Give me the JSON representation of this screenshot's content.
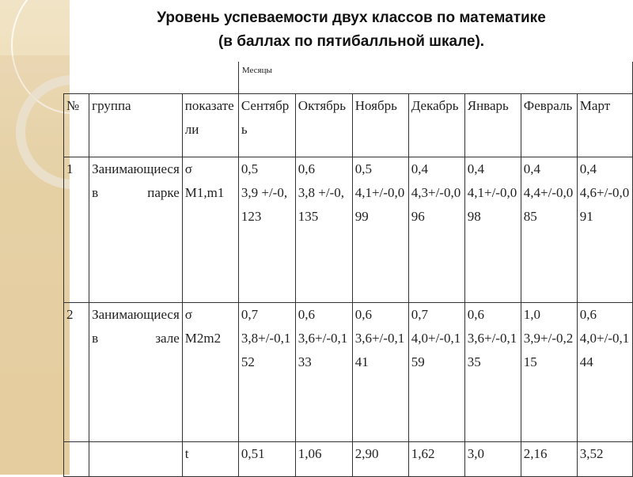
{
  "title": {
    "line1": "Уровень успеваемости двух классов по математике",
    "line2": "(в баллах по пятибалльной шкале)."
  },
  "table": {
    "months_label": "Месяцы",
    "headers": [
      "№",
      "группа",
      "показатели",
      "Сентябрь",
      "Октябрь",
      "Ноябрь",
      "Декабрь",
      "Январь",
      "Февраль",
      "Март"
    ],
    "rows": [
      {
        "num": "1",
        "group": "Занимающиеся в парке",
        "indicators": [
          "σ",
          "M1,m1"
        ],
        "values": [
          [
            "0,5",
            "3,9 +/-0,123"
          ],
          [
            "0,6",
            "3,8 +/-0,135"
          ],
          [
            "0,5",
            "4,1+/-0,099"
          ],
          [
            "0,4",
            "4,3+/-0,096"
          ],
          [
            "0,4",
            "4,1+/-0,098"
          ],
          [
            "0,4",
            "4,4+/-0,085"
          ],
          [
            "0,4",
            "4,6+/-0,091"
          ]
        ]
      },
      {
        "num": "2",
        "group": "Занимающиеся в зале",
        "indicators": [
          "σ",
          "M2m2"
        ],
        "values": [
          [
            "0,7",
            "3,8+/-0,152"
          ],
          [
            "0,6",
            "3,6+/-0,133"
          ],
          [
            "0,6",
            "3,6+/-0,141"
          ],
          [
            "0,7",
            "4,0+/-0,159"
          ],
          [
            "0,6",
            "3,6+/-0,135"
          ],
          [
            "1,0",
            "3,9+/-0,215"
          ],
          [
            "0,6",
            "4,0+/-0,144"
          ]
        ]
      }
    ],
    "t_row": {
      "label": "t",
      "values": [
        "0,51",
        "1,06",
        "2,90",
        "1,62",
        "3,0",
        "2,16",
        "3,52"
      ]
    }
  },
  "colors": {
    "strip": "#ead7ad",
    "border": "#333333"
  }
}
